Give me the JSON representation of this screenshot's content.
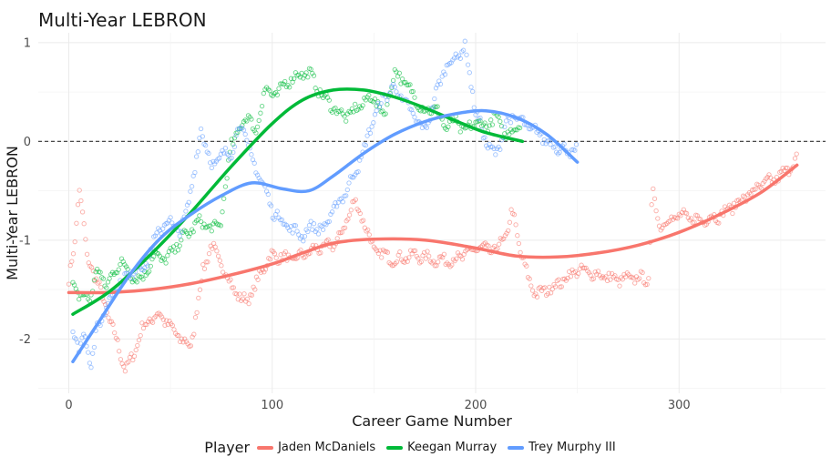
{
  "chart_data": {
    "type": "scatter",
    "title": "Multi-Year LEBRON",
    "xlabel": "Career Game Number",
    "ylabel": "Multi-Year LEBRON",
    "xlim": [
      -15,
      372
    ],
    "ylim": [
      -2.55,
      1.1
    ],
    "x_ticks": [
      0,
      100,
      200,
      300
    ],
    "y_ticks": [
      1,
      0,
      -1,
      -2
    ],
    "y_tick_labels": [
      "1",
      "0",
      "-1",
      "-2"
    ],
    "reference_line": {
      "y": 0,
      "style": "dashed"
    },
    "grid": true,
    "legend": {
      "title": "Player",
      "position": "bottom"
    },
    "series": [
      {
        "name": "Jaden McDaniels",
        "color": "#F8766D",
        "smooth": [
          [
            0,
            -1.53
          ],
          [
            20,
            -1.53
          ],
          [
            40,
            -1.5
          ],
          [
            60,
            -1.44
          ],
          [
            80,
            -1.35
          ],
          [
            100,
            -1.24
          ],
          [
            115,
            -1.13
          ],
          [
            130,
            -1.03
          ],
          [
            150,
            -0.99
          ],
          [
            175,
            -1.0
          ],
          [
            200,
            -1.08
          ],
          [
            220,
            -1.16
          ],
          [
            240,
            -1.17
          ],
          [
            260,
            -1.13
          ],
          [
            280,
            -1.05
          ],
          [
            300,
            -0.92
          ],
          [
            320,
            -0.74
          ],
          [
            340,
            -0.52
          ],
          [
            358,
            -0.24
          ]
        ],
        "anchors": [
          [
            0,
            -1.4
          ],
          [
            3,
            -1.05
          ],
          [
            5,
            -0.45
          ],
          [
            7,
            -0.75
          ],
          [
            9,
            -1.2
          ],
          [
            12,
            -1.3
          ],
          [
            16,
            -1.55
          ],
          [
            20,
            -1.8
          ],
          [
            24,
            -2.05
          ],
          [
            28,
            -2.32
          ],
          [
            32,
            -2.15
          ],
          [
            36,
            -1.9
          ],
          [
            40,
            -1.8
          ],
          [
            45,
            -1.75
          ],
          [
            50,
            -1.88
          ],
          [
            55,
            -2.0
          ],
          [
            60,
            -2.08
          ],
          [
            63,
            -1.7
          ],
          [
            66,
            -1.3
          ],
          [
            70,
            -1.05
          ],
          [
            75,
            -1.25
          ],
          [
            80,
            -1.45
          ],
          [
            85,
            -1.62
          ],
          [
            90,
            -1.55
          ],
          [
            95,
            -1.3
          ],
          [
            100,
            -1.15
          ],
          [
            110,
            -1.2
          ],
          [
            120,
            -1.1
          ],
          [
            130,
            -1.05
          ],
          [
            135,
            -0.9
          ],
          [
            140,
            -0.6
          ],
          [
            145,
            -0.8
          ],
          [
            150,
            -1.1
          ],
          [
            160,
            -1.2
          ],
          [
            170,
            -1.15
          ],
          [
            180,
            -1.2
          ],
          [
            190,
            -1.2
          ],
          [
            200,
            -1.08
          ],
          [
            210,
            -1.1
          ],
          [
            215,
            -0.95
          ],
          [
            218,
            -0.7
          ],
          [
            222,
            -1.1
          ],
          [
            226,
            -1.4
          ],
          [
            230,
            -1.55
          ],
          [
            240,
            -1.45
          ],
          [
            250,
            -1.3
          ],
          [
            260,
            -1.35
          ],
          [
            270,
            -1.4
          ],
          [
            280,
            -1.38
          ],
          [
            285,
            -1.4
          ],
          [
            287,
            -0.45
          ],
          [
            290,
            -0.85
          ],
          [
            300,
            -0.75
          ],
          [
            310,
            -0.8
          ],
          [
            320,
            -0.75
          ],
          [
            330,
            -0.6
          ],
          [
            340,
            -0.45
          ],
          [
            350,
            -0.35
          ],
          [
            358,
            -0.18
          ]
        ]
      },
      {
        "name": "Keegan Murray",
        "color": "#00BA38",
        "smooth": [
          [
            2,
            -1.75
          ],
          [
            20,
            -1.52
          ],
          [
            40,
            -1.15
          ],
          [
            60,
            -0.72
          ],
          [
            80,
            -0.25
          ],
          [
            100,
            0.18
          ],
          [
            115,
            0.42
          ],
          [
            130,
            0.52
          ],
          [
            145,
            0.52
          ],
          [
            160,
            0.45
          ],
          [
            175,
            0.34
          ],
          [
            190,
            0.21
          ],
          [
            205,
            0.09
          ],
          [
            223,
            0.0
          ]
        ],
        "anchors": [
          [
            2,
            -1.45
          ],
          [
            5,
            -1.55
          ],
          [
            10,
            -1.6
          ],
          [
            14,
            -1.3
          ],
          [
            18,
            -1.45
          ],
          [
            22,
            -1.35
          ],
          [
            26,
            -1.2
          ],
          [
            30,
            -1.35
          ],
          [
            36,
            -1.4
          ],
          [
            42,
            -1.15
          ],
          [
            48,
            -1.2
          ],
          [
            55,
            -1.0
          ],
          [
            60,
            -0.9
          ],
          [
            65,
            -0.8
          ],
          [
            70,
            -0.9
          ],
          [
            75,
            -0.8
          ],
          [
            80,
            0.0
          ],
          [
            84,
            0.1
          ],
          [
            88,
            0.3
          ],
          [
            92,
            0.05
          ],
          [
            96,
            0.55
          ],
          [
            100,
            0.45
          ],
          [
            105,
            0.55
          ],
          [
            110,
            0.65
          ],
          [
            118,
            0.7
          ],
          [
            125,
            0.45
          ],
          [
            130,
            0.35
          ],
          [
            135,
            0.25
          ],
          [
            140,
            0.3
          ],
          [
            145,
            0.4
          ],
          [
            150,
            0.45
          ],
          [
            155,
            0.25
          ],
          [
            160,
            0.7
          ],
          [
            165,
            0.6
          ],
          [
            170,
            0.45
          ],
          [
            175,
            0.3
          ],
          [
            180,
            0.35
          ],
          [
            185,
            0.15
          ],
          [
            190,
            0.2
          ],
          [
            195,
            0.1
          ],
          [
            200,
            0.2
          ],
          [
            205,
            0.15
          ],
          [
            210,
            0.25
          ],
          [
            215,
            0.05
          ],
          [
            222,
            0.2
          ]
        ]
      },
      {
        "name": "Trey Murphy III",
        "color": "#619CFF",
        "smooth": [
          [
            2,
            -2.23
          ],
          [
            15,
            -1.82
          ],
          [
            30,
            -1.35
          ],
          [
            45,
            -0.98
          ],
          [
            60,
            -0.74
          ],
          [
            75,
            -0.55
          ],
          [
            90,
            -0.42
          ],
          [
            105,
            -0.48
          ],
          [
            118,
            -0.5
          ],
          [
            130,
            -0.35
          ],
          [
            145,
            -0.12
          ],
          [
            160,
            0.07
          ],
          [
            175,
            0.2
          ],
          [
            190,
            0.28
          ],
          [
            205,
            0.31
          ],
          [
            220,
            0.24
          ],
          [
            235,
            0.07
          ],
          [
            250,
            -0.21
          ]
        ],
        "anchors": [
          [
            2,
            -1.9
          ],
          [
            5,
            -2.1
          ],
          [
            8,
            -1.95
          ],
          [
            11,
            -2.25
          ],
          [
            14,
            -1.9
          ],
          [
            18,
            -1.7
          ],
          [
            22,
            -1.5
          ],
          [
            27,
            -1.4
          ],
          [
            32,
            -1.3
          ],
          [
            38,
            -1.25
          ],
          [
            44,
            -0.9
          ],
          [
            50,
            -0.8
          ],
          [
            55,
            -0.95
          ],
          [
            62,
            -0.3
          ],
          [
            65,
            0.15
          ],
          [
            70,
            -0.25
          ],
          [
            75,
            -0.15
          ],
          [
            80,
            -0.1
          ],
          [
            85,
            0.2
          ],
          [
            90,
            -0.2
          ],
          [
            95,
            -0.4
          ],
          [
            100,
            -0.7
          ],
          [
            105,
            -0.8
          ],
          [
            110,
            -0.9
          ],
          [
            115,
            -0.95
          ],
          [
            120,
            -0.85
          ],
          [
            125,
            -0.9
          ],
          [
            130,
            -0.7
          ],
          [
            135,
            -0.55
          ],
          [
            140,
            -0.35
          ],
          [
            145,
            -0.1
          ],
          [
            150,
            0.25
          ],
          [
            155,
            0.45
          ],
          [
            160,
            0.55
          ],
          [
            165,
            0.4
          ],
          [
            170,
            0.25
          ],
          [
            175,
            0.1
          ],
          [
            180,
            0.45
          ],
          [
            185,
            0.75
          ],
          [
            190,
            0.85
          ],
          [
            195,
            0.95
          ],
          [
            200,
            0.3
          ],
          [
            205,
            0.0
          ],
          [
            210,
            -0.15
          ],
          [
            215,
            0.2
          ],
          [
            220,
            0.25
          ],
          [
            225,
            0.15
          ],
          [
            230,
            0.1
          ],
          [
            235,
            0.0
          ],
          [
            240,
            -0.05
          ],
          [
            245,
            -0.1
          ],
          [
            250,
            -0.08
          ]
        ]
      }
    ]
  }
}
